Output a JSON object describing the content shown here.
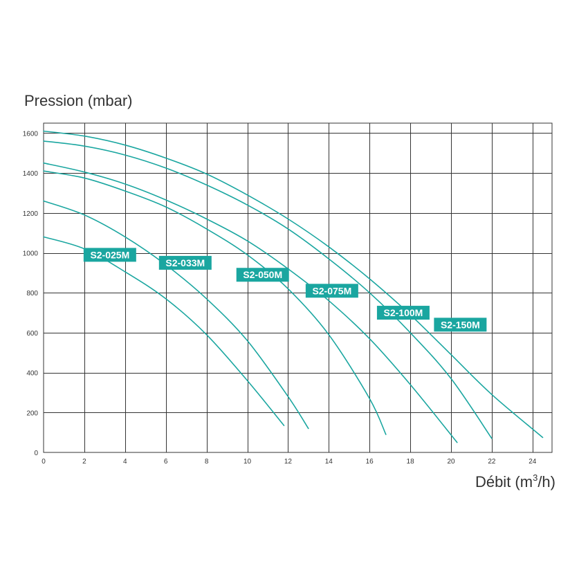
{
  "chart_data": {
    "type": "line",
    "title": "",
    "ylabel": "Pression (mbar)",
    "xlabel_main": "Débit (m",
    "xlabel_sup": "3",
    "xlabel_end": "/h)",
    "xlim": [
      0,
      25
    ],
    "ylim": [
      0,
      1650
    ],
    "x_ticks": [
      0,
      2,
      4,
      6,
      8,
      10,
      12,
      14,
      16,
      18,
      20,
      22,
      24
    ],
    "y_ticks": [
      0,
      200,
      400,
      600,
      800,
      1000,
      1200,
      1400,
      1600
    ],
    "grid": true,
    "legend": "none",
    "colors": {
      "curve": "#1aa6a0",
      "label_bg": "#1aa6a0",
      "grid": "#333333"
    },
    "series": [
      {
        "name": "S2-025M",
        "label_at": [
          2.1,
          990
        ],
        "x": [
          0,
          2,
          4,
          6,
          8,
          10,
          11.8
        ],
        "y": [
          1080,
          1020,
          905,
          770,
          590,
          360,
          135
        ]
      },
      {
        "name": "S2-033M",
        "label_at": [
          5.8,
          950
        ],
        "x": [
          0,
          2,
          4,
          6,
          8,
          10,
          12,
          13
        ],
        "y": [
          1260,
          1190,
          1080,
          940,
          770,
          560,
          280,
          120
        ]
      },
      {
        "name": "S2-050M",
        "label_at": [
          9.6,
          890
        ],
        "x": [
          0,
          2,
          4,
          6,
          8,
          10,
          12,
          14,
          16,
          16.8
        ],
        "y": [
          1410,
          1375,
          1310,
          1230,
          1120,
          990,
          820,
          590,
          270,
          90
        ]
      },
      {
        "name": "S2-075M",
        "label_at": [
          13.0,
          810
        ],
        "x": [
          0,
          2,
          4,
          6,
          8,
          10,
          12,
          14,
          16,
          18,
          20.3
        ],
        "y": [
          1450,
          1405,
          1345,
          1265,
          1170,
          1060,
          920,
          760,
          570,
          340,
          50
        ]
      },
      {
        "name": "S2-100M",
        "label_at": [
          16.5,
          700
        ],
        "x": [
          0,
          2,
          4,
          6,
          8,
          10,
          12,
          14,
          16,
          18,
          20,
          22
        ],
        "y": [
          1560,
          1535,
          1490,
          1425,
          1340,
          1240,
          1120,
          970,
          800,
          600,
          370,
          70
        ]
      },
      {
        "name": "S2-150M",
        "label_at": [
          19.3,
          640
        ],
        "x": [
          0,
          2,
          4,
          6,
          8,
          10,
          12,
          14,
          16,
          18,
          20,
          22,
          24.5
        ],
        "y": [
          1610,
          1585,
          1540,
          1475,
          1395,
          1290,
          1170,
          1030,
          870,
          690,
          490,
          290,
          75
        ]
      }
    ]
  }
}
